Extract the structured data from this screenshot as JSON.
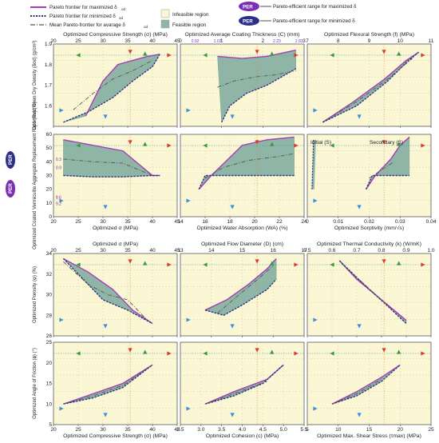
{
  "legend": {
    "max_label": "Pareto frontier for maximized δ",
    "min_label": "Pareto frontier for minimized δ",
    "mean_label": "Mean Pareto-frontier for avarage δ",
    "infeasible_label": "Infeasible region",
    "feasible_label": "Feasible region",
    "per_max_label": "Pareto-efficient range for maximized δ",
    "per_min_label": "Pareto-efficient range for minimized δ",
    "per_badge": "PER",
    "subscript": "od"
  },
  "colors": {
    "infeasible": "#fbf6d3",
    "feasible": "#8fb5a6",
    "max_frontier": "#a53db8",
    "min_frontier": "#2c2f86",
    "mean": "#555555",
    "arrow_red": "#d8402a",
    "arrow_green": "#3a9a3a",
    "arrow_blue": "#3c8fe0",
    "ref_line": "#2aa0b8"
  },
  "per_tags": {
    "coating_left": "0.92",
    "coating_mid1": "1.02",
    "coating_mid2": "2.23",
    "coating_right": "2.83",
    "area_a": "0.3",
    "area_b": "0.9",
    "area_c": "8.6",
    "area_d": "9.2",
    "side_badge": "PER"
  },
  "annotations": {
    "initial": "Initial (S)",
    "secondary": "Secondary (S)"
  },
  "chart_data": [
    {
      "id": "p11",
      "type": "area",
      "title": "Optimized Compressive Strength (σ) (MPa)",
      "ylabel": "Optimized Oven Dry Density (δod) (g/cm³)",
      "xlim": [
        20,
        45
      ],
      "ylim": [
        1.5,
        1.9
      ],
      "xticks": [
        "20",
        "25",
        "30",
        "35",
        "40",
        "45"
      ],
      "yticks": [
        "1.6",
        "1.7",
        "1.8",
        "1.9"
      ],
      "max": [
        [
          26.5,
          1.55
        ],
        [
          30,
          1.72
        ],
        [
          33,
          1.8
        ],
        [
          36,
          1.82
        ],
        [
          39,
          1.84
        ],
        [
          41.5,
          1.85
        ]
      ],
      "min": [
        [
          22,
          1.52
        ],
        [
          27,
          1.57
        ],
        [
          32,
          1.64
        ],
        [
          36,
          1.72
        ],
        [
          40,
          1.79
        ],
        [
          41.5,
          1.85
        ]
      ],
      "mean": [
        [
          24,
          1.58
        ],
        [
          28,
          1.66
        ],
        [
          32,
          1.73
        ],
        [
          36,
          1.77
        ],
        [
          40,
          1.82
        ]
      ]
    },
    {
      "id": "p12",
      "type": "area",
      "title": "Optimized Average Coating Thickness (C) (mm)",
      "xlim": [
        0,
        3
      ],
      "ylim": [
        1.5,
        1.9
      ],
      "xticks": [
        "0",
        "1",
        "2",
        "3"
      ],
      "max": [
        [
          0.9,
          1.84
        ],
        [
          1.5,
          1.83
        ],
        [
          2.1,
          1.84
        ],
        [
          2.8,
          1.87
        ]
      ],
      "min": [
        [
          1.0,
          1.52
        ],
        [
          1.2,
          1.6
        ],
        [
          1.6,
          1.66
        ],
        [
          2.1,
          1.7
        ],
        [
          2.8,
          1.78
        ]
      ],
      "mean": [
        [
          0.9,
          1.69
        ],
        [
          1.3,
          1.72
        ],
        [
          1.8,
          1.74
        ],
        [
          2.3,
          1.75
        ],
        [
          2.8,
          1.77
        ]
      ]
    },
    {
      "id": "p13",
      "type": "area",
      "title": "Optimized Flexural Strength (f) (MPa)",
      "xlim": [
        7,
        11
      ],
      "ylim": [
        1.5,
        1.9
      ],
      "xticks": [
        "7",
        "8",
        "9",
        "10",
        "11"
      ],
      "max": [
        [
          7.5,
          1.52
        ],
        [
          8.5,
          1.62
        ],
        [
          9.5,
          1.73
        ],
        [
          10.2,
          1.82
        ],
        [
          10.6,
          1.86
        ]
      ],
      "min": [
        [
          7.5,
          1.52
        ],
        [
          8.6,
          1.6
        ],
        [
          9.6,
          1.72
        ],
        [
          10.2,
          1.81
        ],
        [
          10.6,
          1.86
        ]
      ],
      "mean": [
        [
          7.6,
          1.53
        ],
        [
          8.6,
          1.62
        ],
        [
          9.6,
          1.73
        ],
        [
          10.4,
          1.83
        ]
      ]
    },
    {
      "id": "p21",
      "type": "area",
      "title": "",
      "xlabel": "Optimized σ (MPa)",
      "ylabel": "Optimized Coated Vermiculite Aggregate Replacement Ratio (Rv) (%)",
      "xlim": [
        20,
        45
      ],
      "ylim": [
        0,
        60
      ],
      "xticks": [
        "20",
        "25",
        "30",
        "35",
        "40",
        "45"
      ],
      "yticks": [
        "0",
        "10",
        "20",
        "30",
        "40",
        "50",
        "60"
      ],
      "max": [
        [
          22,
          56
        ],
        [
          28,
          52
        ],
        [
          34,
          48
        ],
        [
          40,
          30
        ],
        [
          41.5,
          30
        ]
      ],
      "min": [
        [
          22,
          30
        ],
        [
          28,
          29
        ],
        [
          34,
          29
        ],
        [
          40,
          30
        ],
        [
          41.5,
          30
        ]
      ],
      "mean": [
        [
          22,
          42
        ],
        [
          28,
          40
        ],
        [
          34,
          39
        ],
        [
          40,
          30
        ]
      ]
    },
    {
      "id": "p22",
      "type": "area",
      "title": "",
      "xlabel": "Optimized Water Absorption (WA) (%)",
      "xlim": [
        14,
        24
      ],
      "ylim": [
        0,
        60
      ],
      "xticks": [
        "14",
        "16",
        "18",
        "20",
        "22",
        "24"
      ],
      "max": [
        [
          15.5,
          20
        ],
        [
          16.5,
          30
        ],
        [
          19,
          52
        ],
        [
          21,
          56
        ],
        [
          23.2,
          58
        ]
      ],
      "min": [
        [
          15.5,
          20
        ],
        [
          16,
          30
        ],
        [
          18,
          30
        ],
        [
          21,
          30
        ],
        [
          23.2,
          30
        ]
      ],
      "mean": [
        [
          16,
          28
        ],
        [
          17.5,
          36
        ],
        [
          19.5,
          41
        ],
        [
          22,
          44
        ],
        [
          23.2,
          46
        ]
      ]
    },
    {
      "id": "p23",
      "type": "area",
      "title": "",
      "xlabel": "Optimized Sorptivity (mm/√s)",
      "xlim": [
        0,
        0.04
      ],
      "ylim": [
        0,
        60
      ],
      "xticks": [
        "0",
        "0.01",
        "0.02",
        "0.03",
        "0.04"
      ],
      "max": [
        [
          0.019,
          20
        ],
        [
          0.022,
          30
        ],
        [
          0.027,
          42
        ],
        [
          0.03,
          52
        ],
        [
          0.033,
          58
        ]
      ],
      "min": [
        [
          0.019,
          20
        ],
        [
          0.021,
          30
        ],
        [
          0.025,
          30
        ],
        [
          0.033,
          30
        ]
      ],
      "mean": [
        [
          0.02,
          28
        ],
        [
          0.024,
          34
        ],
        [
          0.028,
          40
        ]
      ],
      "initial": [
        [
          0.0015,
          20
        ],
        [
          0.0018,
          40
        ],
        [
          0.002,
          56
        ]
      ]
    },
    {
      "id": "p31",
      "type": "area",
      "title": "Optimized σ (MPa)",
      "xlabel": "Optimized Compressive Strength (σ) (MPa)",
      "ylabel": "Optimized Porosity (φ) (%)",
      "xlim": [
        20,
        45
      ],
      "ylim": [
        26,
        34
      ],
      "xticks": [
        "20",
        "25",
        "30",
        "35",
        "40",
        "45"
      ],
      "yticks": [
        "26",
        "28",
        "30",
        "32",
        "34"
      ],
      "max": [
        [
          22,
          33.5
        ],
        [
          27,
          32.2
        ],
        [
          32,
          30.5
        ],
        [
          36,
          28.5
        ],
        [
          40,
          27.2
        ]
      ],
      "min": [
        [
          22,
          33.5
        ],
        [
          26,
          31.5
        ],
        [
          30,
          29.5
        ],
        [
          35,
          28.5
        ],
        [
          40,
          27.2
        ]
      ],
      "mean": [
        [
          22,
          33.2
        ],
        [
          27,
          31
        ],
        [
          31,
          30
        ],
        [
          35,
          29.5
        ],
        [
          39,
          27.5
        ]
      ]
    },
    {
      "id": "p32",
      "type": "area",
      "title": "Optimized Flow Diameter (D) (cm)",
      "xlim": [
        13,
        17
      ],
      "ylim": [
        26,
        34
      ],
      "xticks": [
        "13",
        "14",
        "15",
        "16",
        "17"
      ],
      "max": [
        [
          13.8,
          28.5
        ],
        [
          14.5,
          29.5
        ],
        [
          15.2,
          31
        ],
        [
          15.8,
          32.5
        ],
        [
          16.1,
          33.5
        ]
      ],
      "min": [
        [
          13.8,
          28.5
        ],
        [
          14.4,
          28
        ],
        [
          15,
          29
        ],
        [
          15.8,
          30.5
        ],
        [
          16.1,
          31.5
        ]
      ],
      "mean": [
        [
          14.2,
          28.2
        ],
        [
          14.9,
          30
        ],
        [
          15.5,
          31.5
        ],
        [
          16,
          32.8
        ]
      ]
    },
    {
      "id": "p33",
      "type": "area",
      "title": "Optimized Thermal Conductivity (k) (W/mK)",
      "xlim": [
        0.5,
        1.0
      ],
      "ylim": [
        26,
        34
      ],
      "xticks": [
        "0.5",
        "0.6",
        "0.7",
        "0.8",
        "0.9",
        "1.0"
      ],
      "max": [
        [
          0.63,
          33.3
        ],
        [
          0.7,
          31.5
        ],
        [
          0.8,
          29.5
        ],
        [
          0.9,
          27.5
        ]
      ],
      "min": [
        [
          0.63,
          33.3
        ],
        [
          0.72,
          31.2
        ],
        [
          0.82,
          29
        ],
        [
          0.9,
          27.2
        ]
      ],
      "mean": [
        [
          0.64,
          33
        ],
        [
          0.74,
          30.8
        ],
        [
          0.84,
          28.6
        ]
      ]
    },
    {
      "id": "p41",
      "type": "area",
      "title": "",
      "xlabel": "Optimized Compressive Strength (σ) (MPa)",
      "ylabel": "Optimized Angle of Friction (ϕ) (°)",
      "xlim": [
        20,
        45
      ],
      "ylim": [
        5,
        25
      ],
      "xticks": [
        "20",
        "25",
        "30",
        "35",
        "40",
        "45"
      ],
      "yticks": [
        "5",
        "10",
        "15",
        "20",
        "25"
      ],
      "max": [
        [
          22,
          10
        ],
        [
          28,
          12.5
        ],
        [
          34,
          15
        ],
        [
          40,
          19.5
        ]
      ],
      "min": [
        [
          22,
          10
        ],
        [
          28,
          11.5
        ],
        [
          34,
          14
        ],
        [
          40,
          19.5
        ]
      ],
      "mean": [
        [
          22,
          10
        ],
        [
          28,
          12
        ],
        [
          34,
          14.5
        ],
        [
          40,
          19.5
        ]
      ]
    },
    {
      "id": "p42",
      "type": "area",
      "title": "",
      "xlabel": "Optimized Cohesion (c) (MPa)",
      "xlim": [
        2.5,
        5.5
      ],
      "ylim": [
        5,
        25
      ],
      "xticks": [
        "2.5",
        "3.0",
        "3.5",
        "4.0",
        "4.5",
        "5.0",
        "5.5"
      ],
      "max": [
        [
          3.1,
          10
        ],
        [
          3.8,
          13
        ],
        [
          4.6,
          16
        ],
        [
          5.0,
          19.5
        ]
      ],
      "min": [
        [
          3.1,
          10
        ],
        [
          3.8,
          12
        ],
        [
          4.5,
          15
        ],
        [
          5.0,
          19.5
        ]
      ],
      "mean": [
        [
          3.1,
          10
        ],
        [
          3.8,
          12.5
        ],
        [
          4.6,
          15.5
        ]
      ]
    },
    {
      "id": "p43",
      "type": "area",
      "title": "",
      "xlabel": "Optimized Max. Shear Stress (τmax) (MPa)",
      "xlim": [
        5,
        25
      ],
      "ylim": [
        5,
        25
      ],
      "xticks": [
        "5",
        "10",
        "15",
        "20",
        "25"
      ],
      "max": [
        [
          9,
          10
        ],
        [
          13,
          13
        ],
        [
          17,
          16.5
        ],
        [
          20,
          19.5
        ]
      ],
      "min": [
        [
          9,
          10
        ],
        [
          13,
          12
        ],
        [
          17,
          15.5
        ],
        [
          20,
          19.5
        ]
      ],
      "mean": [
        [
          9,
          10
        ],
        [
          13,
          12.5
        ],
        [
          17,
          16
        ]
      ]
    }
  ]
}
